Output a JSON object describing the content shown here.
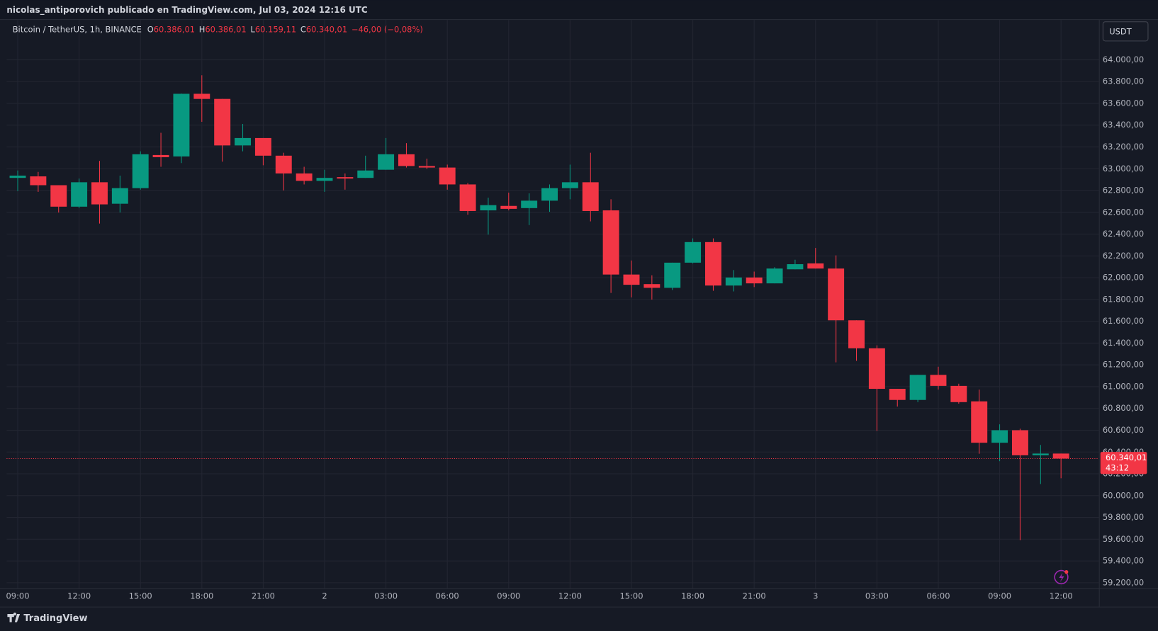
{
  "header": "nicolas_antiporovich publicado en TradingView.com, Jul 03, 2024 12:16 UTC",
  "footer": "TradingView",
  "chart_data": {
    "type": "candlestick",
    "title": "Bitcoin / TetherUS, 1h, BINANCE",
    "ohlc_legend": [
      {
        "label": "O",
        "value": "60.386,01"
      },
      {
        "label": "H",
        "value": "60.386,01"
      },
      {
        "label": "L",
        "value": "60.159,11"
      },
      {
        "label": "C",
        "value": "60.340,01"
      }
    ],
    "change": "−46,00 (−0,08%)",
    "currency": "USDT",
    "categories": [
      "09:00",
      null,
      null,
      "12:00",
      null,
      null,
      "15:00",
      null,
      null,
      "18:00",
      null,
      null,
      "21:00",
      null,
      null,
      "2",
      null,
      null,
      "03:00",
      null,
      null,
      "06:00",
      null,
      null,
      "09:00",
      null,
      null,
      "12:00",
      null,
      null,
      "15:00",
      null,
      null,
      "18:00",
      null,
      null,
      "21:00",
      null,
      null,
      "3",
      null,
      null,
      "03:00",
      null,
      null,
      "06:00",
      null,
      null,
      "09:00",
      null,
      null,
      "12:00"
    ],
    "open": [
      62916,
      62930,
      62849,
      62652,
      62876,
      62679,
      62822,
      63126,
      63113,
      63688,
      63641,
      63214,
      63282,
      63120,
      62957,
      62889,
      62923,
      62916,
      62991,
      63133,
      63025,
      63011,
      62856,
      62618,
      62659,
      62639,
      62707,
      62822,
      62876,
      62618,
      62029,
      61941,
      61907,
      62138,
      62327,
      61928,
      62002,
      61948,
      62077,
      62131,
      62084,
      61609,
      61352,
      60980,
      60878,
      61108,
      61007,
      60865,
      60485,
      60600,
      60370,
      60386.01
    ],
    "high": [
      62984,
      62971,
      62849,
      62910,
      63072,
      62937,
      63160,
      63330,
      63690,
      63858,
      63641,
      63411,
      63282,
      63147,
      63018,
      62991,
      62957,
      63120,
      63282,
      63235,
      63093,
      63038,
      62869,
      62734,
      62781,
      62774,
      62856,
      63038,
      63147,
      62720,
      62158,
      62022,
      62138,
      62361,
      62361,
      62070,
      62056,
      62097,
      62165,
      62273,
      62205,
      61609,
      61379,
      60980,
      61108,
      61183,
      61027,
      60973,
      60654,
      60614,
      60465,
      60386.01
    ],
    "low": [
      62795,
      62788,
      62598,
      62639,
      62497,
      62598,
      62808,
      63018,
      63052,
      63431,
      63065,
      63160,
      63032,
      62801,
      62856,
      62788,
      62808,
      62916,
      62991,
      63011,
      62998,
      62808,
      62578,
      62395,
      62618,
      62483,
      62605,
      62720,
      62517,
      61860,
      61819,
      61799,
      61887,
      62131,
      61880,
      61874,
      61914,
      61948,
      62077,
      62084,
      61223,
      61237,
      60594,
      60817,
      60858,
      60973,
      60844,
      60384,
      60316,
      59591,
      60106,
      60159.11
    ],
    "close": [
      62937,
      62849,
      62652,
      62876,
      62673,
      62822,
      63133,
      63106,
      63688,
      63641,
      63214,
      63282,
      63120,
      62957,
      62889,
      62916,
      62910,
      62984,
      63133,
      63025,
      63011,
      62856,
      62612,
      62666,
      62632,
      62707,
      62822,
      62876,
      62612,
      62029,
      61935,
      61907,
      62138,
      62327,
      61928,
      62002,
      61948,
      62084,
      62124,
      62084,
      61609,
      61352,
      60980,
      60878,
      61108,
      61007,
      60858,
      60485,
      60600,
      60370,
      60386,
      60340.01
    ],
    "up_color": "#089981",
    "down_color": "#f23645",
    "ylim": [
      59150,
      64366
    ],
    "yticks": [
      {
        "value": 64000,
        "label": "64.000,00"
      },
      {
        "value": 63800,
        "label": "63.800,00"
      },
      {
        "value": 63600,
        "label": "63.600,00"
      },
      {
        "value": 63400,
        "label": "63.400,00"
      },
      {
        "value": 63200,
        "label": "63.200,00"
      },
      {
        "value": 63000,
        "label": "63.000,00"
      },
      {
        "value": 62800,
        "label": "62.800,00"
      },
      {
        "value": 62600,
        "label": "62.600,00"
      },
      {
        "value": 62400,
        "label": "62.400,00"
      },
      {
        "value": 62200,
        "label": "62.200,00"
      },
      {
        "value": 62000,
        "label": "62.000,00"
      },
      {
        "value": 61800,
        "label": "61.800,00"
      },
      {
        "value": 61600,
        "label": "61.600,00"
      },
      {
        "value": 61400,
        "label": "61.400,00"
      },
      {
        "value": 61200,
        "label": "61.200,00"
      },
      {
        "value": 61000,
        "label": "61.000,00"
      },
      {
        "value": 60800,
        "label": "60.800,00"
      },
      {
        "value": 60600,
        "label": "60.600,00"
      },
      {
        "value": 60400,
        "label": "60.400,00"
      },
      {
        "value": 60200,
        "label": "60.200,00"
      },
      {
        "value": 60000,
        "label": "60.000,00"
      },
      {
        "value": 59800,
        "label": "59.800,00"
      },
      {
        "value": 59600,
        "label": "59.600,00"
      },
      {
        "value": 59400,
        "label": "59.400,00"
      },
      {
        "value": 59200,
        "label": "59.200,00"
      }
    ],
    "grid": true,
    "last_price_label": "60.340,01",
    "countdown": "43:12"
  }
}
